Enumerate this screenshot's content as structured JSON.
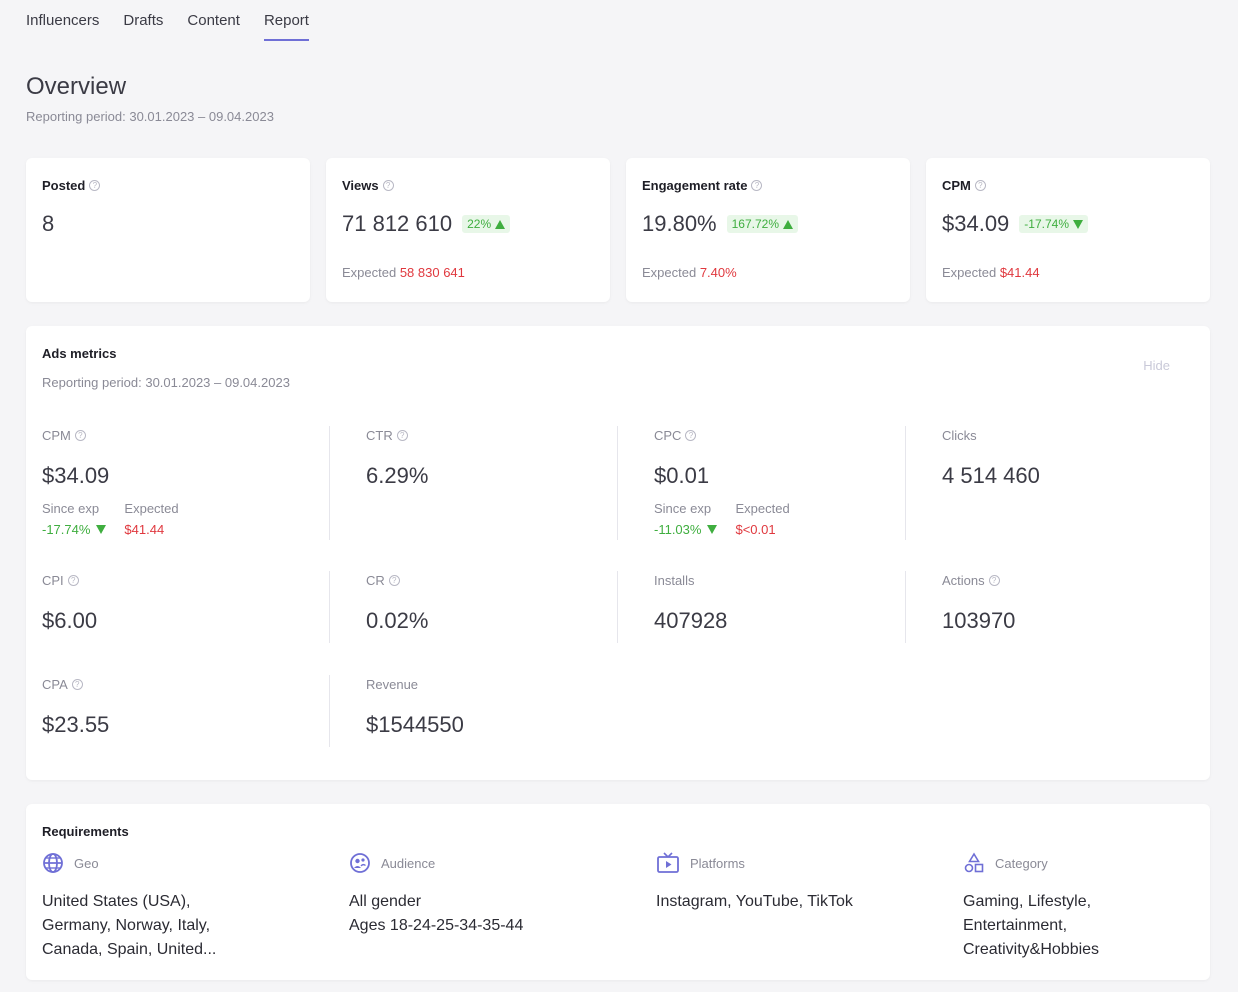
{
  "tabs": [
    "Influencers",
    "Drafts",
    "Content",
    "Report"
  ],
  "active_tab": "Report",
  "overview": {
    "title": "Overview",
    "period": "Reporting period: 30.01.2023 – 09.04.2023"
  },
  "kpis": {
    "posted": {
      "label": "Posted",
      "value": "8"
    },
    "views": {
      "label": "Views",
      "value": "71 812 610",
      "delta": "22%",
      "expected_label": "Expected",
      "expected_value": "58 830 641"
    },
    "engagement": {
      "label": "Engagement rate",
      "value": "19.80%",
      "delta": "167.72%",
      "expected_label": "Expected",
      "expected_value": "7.40%"
    },
    "cpm": {
      "label": "CPM",
      "value": "$34.09",
      "delta": "-17.74%",
      "expected_label": "Expected",
      "expected_value": "$41.44"
    }
  },
  "ads": {
    "title": "Ads metrics",
    "period": "Reporting period: 30.01.2023 – 09.04.2023",
    "hide_label": "Hide",
    "cpm": {
      "label": "CPM",
      "value": "$34.09",
      "since_label": "Since exp",
      "since_value": "-17.74%",
      "expected_label": "Expected",
      "expected_value": "$41.44"
    },
    "ctr": {
      "label": "CTR",
      "value": "6.29%"
    },
    "cpc": {
      "label": "CPC",
      "value": "$0.01",
      "since_label": "Since exp",
      "since_value": "-11.03%",
      "expected_label": "Expected",
      "expected_value": "$<0.01"
    },
    "clicks": {
      "label": "Clicks",
      "value": "4 514 460"
    },
    "cpi": {
      "label": "CPI",
      "value": "$6.00"
    },
    "cr": {
      "label": "CR",
      "value": "0.02%"
    },
    "installs": {
      "label": "Installs",
      "value": "407928"
    },
    "actions": {
      "label": "Actions",
      "value": "103970"
    },
    "cpa": {
      "label": "CPA",
      "value": "$23.55"
    },
    "revenue": {
      "label": "Revenue",
      "value": "$1544550"
    }
  },
  "requirements": {
    "title": "Requirements",
    "geo": {
      "label": "Geo",
      "icon": "globe-icon",
      "lines": [
        "United States (USA),",
        "Germany, Norway, Italy,",
        "Canada, Spain, United..."
      ]
    },
    "audience": {
      "label": "Audience",
      "icon": "audience-icon",
      "lines": [
        "All gender",
        "Ages 18-24-25-34-35-44"
      ]
    },
    "platforms": {
      "label": "Platforms",
      "icon": "tv-play-icon",
      "lines": [
        "Instagram, YouTube, TikTok"
      ]
    },
    "category": {
      "label": "Category",
      "icon": "shapes-icon",
      "lines": [
        "Gaming, Lifestyle,",
        "Entertainment,",
        "Creativity&Hobbies"
      ]
    }
  },
  "colors": {
    "accent": "#6f6fd6",
    "positive": "#3fae3f",
    "negative": "#e0383e",
    "muted": "#8a8a96"
  }
}
